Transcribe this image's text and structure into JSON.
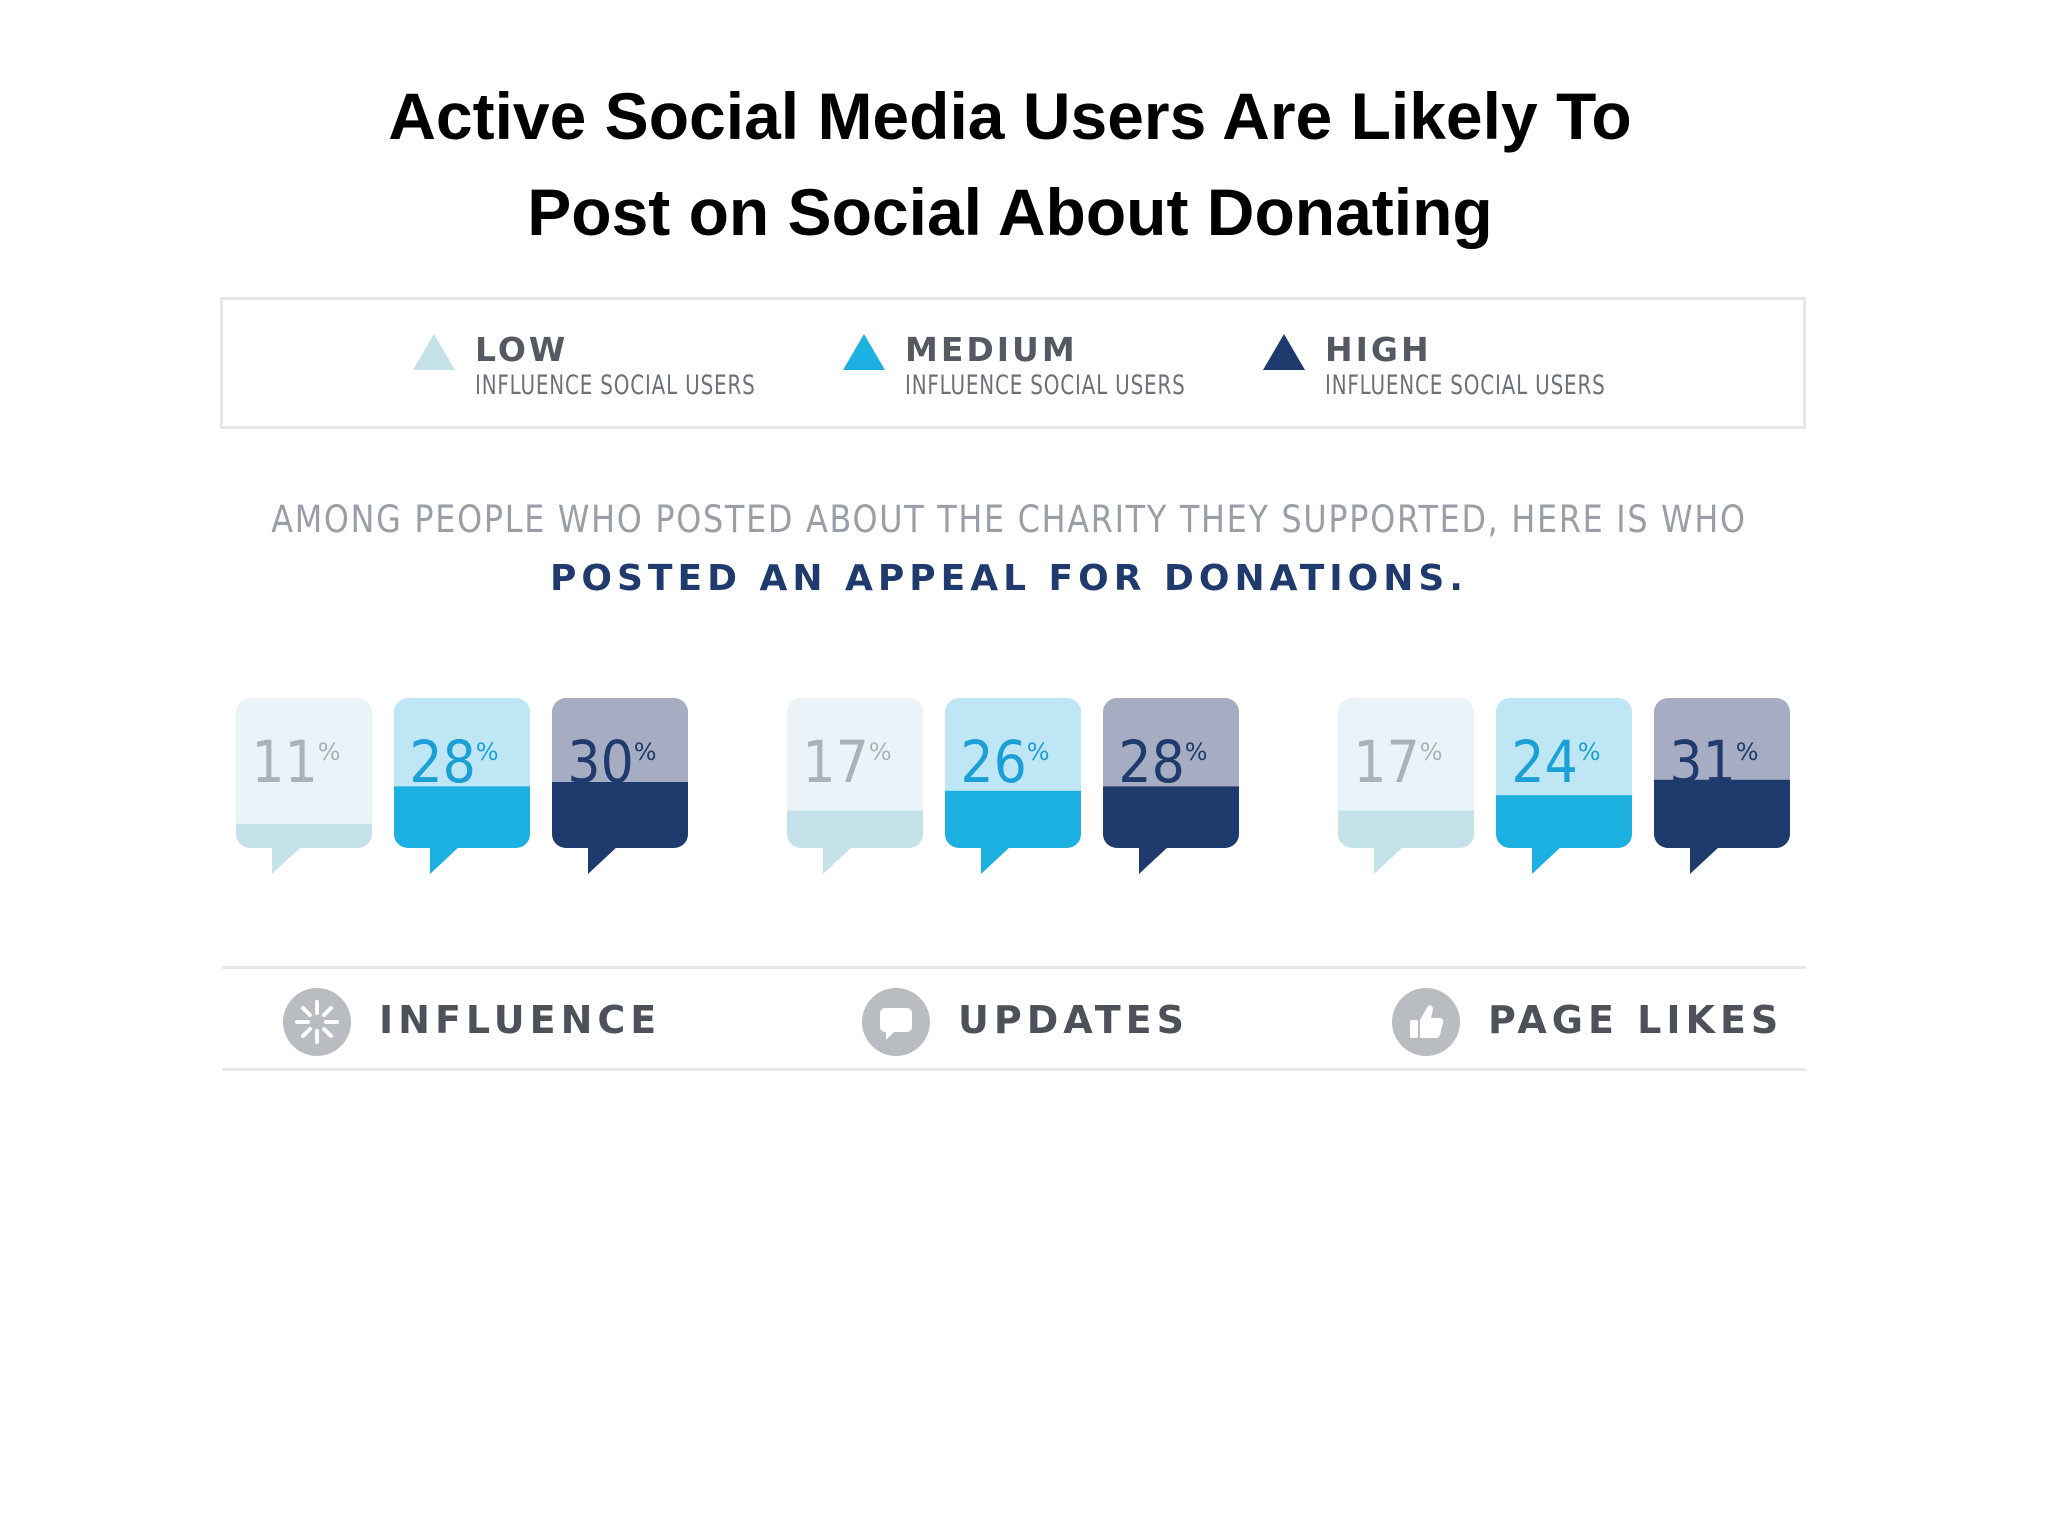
{
  "title": {
    "line1": "Active Social Media Users Are Likely To",
    "line2": "Post on Social About Donating"
  },
  "legend": [
    {
      "level": "LOW",
      "sub": "INFLUENCE SOCIAL USERS",
      "color": "#c5e2eb"
    },
    {
      "level": "MEDIUM",
      "sub": "INFLUENCE SOCIAL USERS",
      "color": "#1cb1e0"
    },
    {
      "level": "HIGH",
      "sub": "INFLUENCE SOCIAL USERS",
      "color": "#1f3a6d"
    }
  ],
  "intro": {
    "line1": "AMONG PEOPLE WHO POSTED ABOUT THE CHARITY THEY SUPPORTED, HERE IS WHO",
    "line2": "POSTED AN APPEAL FOR DONATIONS."
  },
  "categories_footer": [
    {
      "label": "INFLUENCE",
      "icon": "burst-icon"
    },
    {
      "label": "UPDATES",
      "icon": "speech-bubble-icon"
    },
    {
      "label": "PAGE LIKES",
      "icon": "thumbs-up-icon"
    }
  ],
  "colors": {
    "low_top": "#eaf3f7",
    "low_fill": "#c5e2eb",
    "low_text": "#a6b3bb",
    "medium_top": "#bfe6f5",
    "medium_fill": "#1cb1e0",
    "medium_text": "#1a9fd6",
    "high_top": "#a6adc2",
    "high_fill": "#1f3a6d",
    "high_text": "#1f3a6d"
  },
  "chart_data": {
    "type": "bar",
    "categories": [
      "INFLUENCE",
      "UPDATES",
      "PAGE LIKES"
    ],
    "series": [
      {
        "name": "LOW INFLUENCE SOCIAL USERS",
        "values": [
          11,
          17,
          17
        ]
      },
      {
        "name": "MEDIUM INFLUENCE SOCIAL USERS",
        "values": [
          28,
          26,
          24
        ]
      },
      {
        "name": "HIGH INFLUENCE SOCIAL USERS",
        "values": [
          30,
          28,
          31
        ]
      }
    ],
    "unit": "%",
    "title": "POSTED AN APPEAL FOR DONATIONS.",
    "ylim": [
      0,
      100
    ]
  }
}
